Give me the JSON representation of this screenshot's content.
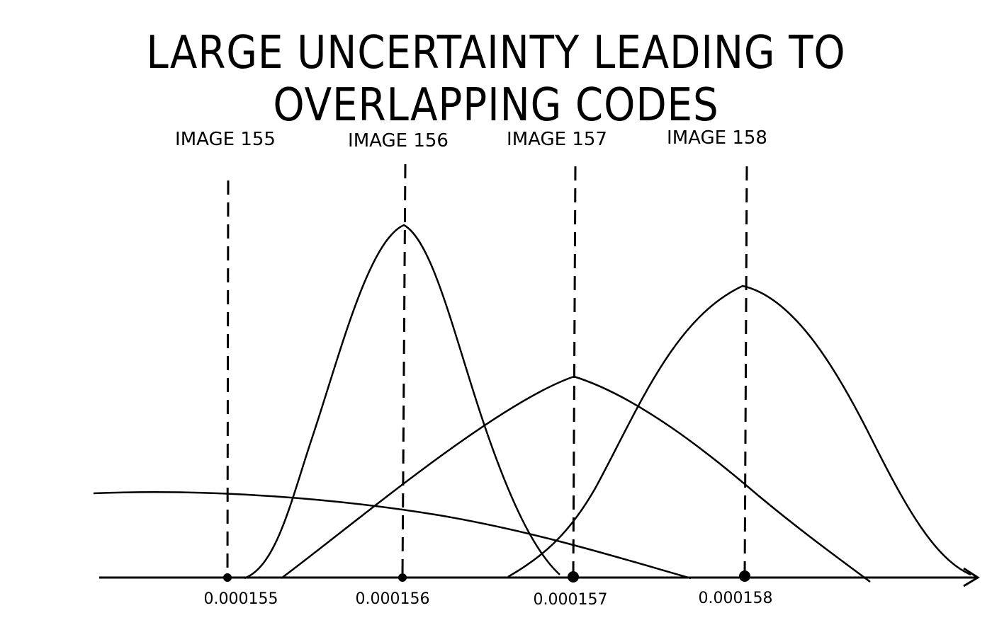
{
  "title": "LARGE UNCERTAINTY LEADING TO OVERLAPPING CODES",
  "images": [
    {
      "label": "IMAGE 155",
      "value": "0.000155"
    },
    {
      "label": "IMAGE 156",
      "value": "0.000156"
    },
    {
      "label": "IMAGE 157",
      "value": "0.000157"
    },
    {
      "label": "IMAGE 158",
      "value": "0.000158"
    }
  ],
  "colors": {
    "ink": "#000000",
    "background": "#ffffff"
  }
}
